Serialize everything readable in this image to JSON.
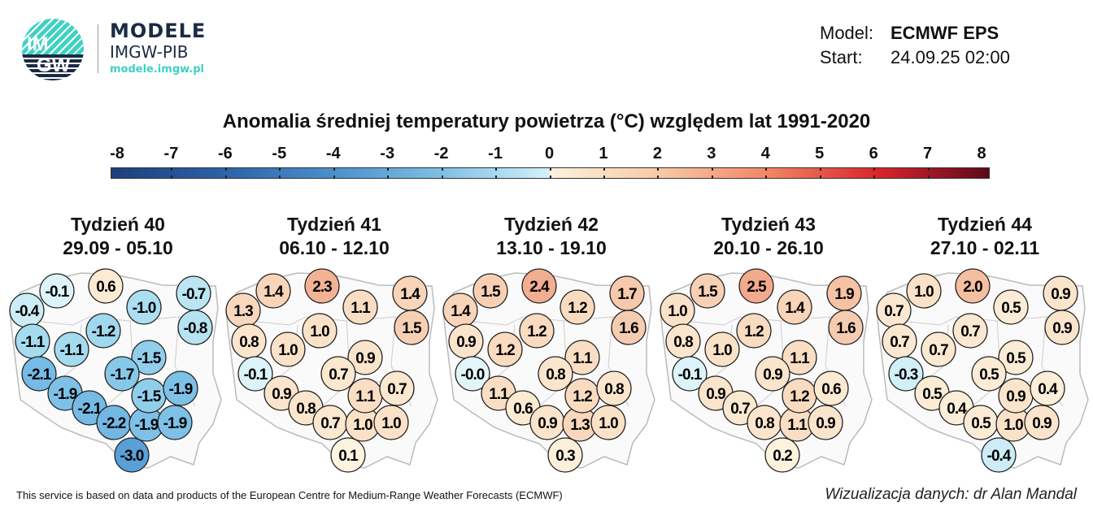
{
  "logo": {
    "mark_top": "IM",
    "mark_bottom": "GW",
    "name": "MODELE",
    "org": "IMGW-PIB",
    "url": "modele.imgw.pl"
  },
  "header": {
    "model_label": "Model:",
    "model_value": "ECMWF EPS",
    "start_label": "Start:",
    "start_value": "24.09.25 02:00"
  },
  "title": "Anomalia średniej temperatury powietrza (°C) względem lat 1991-2020",
  "colorbar": {
    "ticks": [
      "-8",
      "-7",
      "-6",
      "-5",
      "-4",
      "-3",
      "-2",
      "-1",
      "0",
      "1",
      "2",
      "3",
      "4",
      "5",
      "6",
      "7",
      "8"
    ],
    "min": -8,
    "max": 8
  },
  "weeks": [
    {
      "label": "Tydzień 40",
      "dates": "29.09 - 05.10",
      "values": [
        "-0.4",
        "-0.1",
        "0.6",
        "-1.0",
        "-0.7",
        "-0.8",
        "-1.2",
        "-1.1",
        "-1.1",
        "-2.1",
        "-1.9",
        "-2.1",
        "-2.2",
        "-1.9",
        "-1.9",
        "-1.5",
        "-1.7",
        "-1.5",
        "-1.9",
        "-3.0"
      ]
    },
    {
      "label": "Tydzień 41",
      "dates": "06.10 - 12.10",
      "values": [
        "1.3",
        "1.4",
        "2.3",
        "1.1",
        "1.4",
        "1.5",
        "1.0",
        "0.8",
        "1.0",
        "-0.1",
        "0.9",
        "0.8",
        "0.7",
        "1.0",
        "1.0",
        "0.9",
        "0.7",
        "1.1",
        "0.7",
        "0.1"
      ]
    },
    {
      "label": "Tydzień 42",
      "dates": "13.10 - 19.10",
      "values": [
        "1.4",
        "1.5",
        "2.4",
        "1.2",
        "1.7",
        "1.6",
        "1.2",
        "0.9",
        "1.2",
        "-0.0",
        "1.1",
        "0.6",
        "0.9",
        "1.3",
        "1.0",
        "1.1",
        "0.8",
        "1.2",
        "0.8",
        "0.3"
      ]
    },
    {
      "label": "Tydzień 43",
      "dates": "20.10 - 26.10",
      "values": [
        "1.0",
        "1.5",
        "2.5",
        "1.4",
        "1.9",
        "1.6",
        "1.2",
        "0.8",
        "1.0",
        "-0.1",
        "0.9",
        "0.7",
        "0.8",
        "1.1",
        "0.9",
        "1.1",
        "0.9",
        "1.2",
        "0.6",
        "0.2"
      ]
    },
    {
      "label": "Tydzień 44",
      "dates": "27.10 - 02.11",
      "values": [
        "0.7",
        "1.0",
        "2.0",
        "0.5",
        "0.9",
        "0.9",
        "0.7",
        "0.7",
        "0.7",
        "-0.3",
        "0.5",
        "0.4",
        "0.5",
        "1.0",
        "0.9",
        "0.5",
        "0.5",
        "0.9",
        "0.4",
        "-0.4"
      ]
    }
  ],
  "footer": {
    "left": "This service is based on data and products of the European Centre for Medium-Range Weather Forecasts (ECMWF)",
    "right": "Wizualizacja danych: dr Alan Mandal"
  }
}
